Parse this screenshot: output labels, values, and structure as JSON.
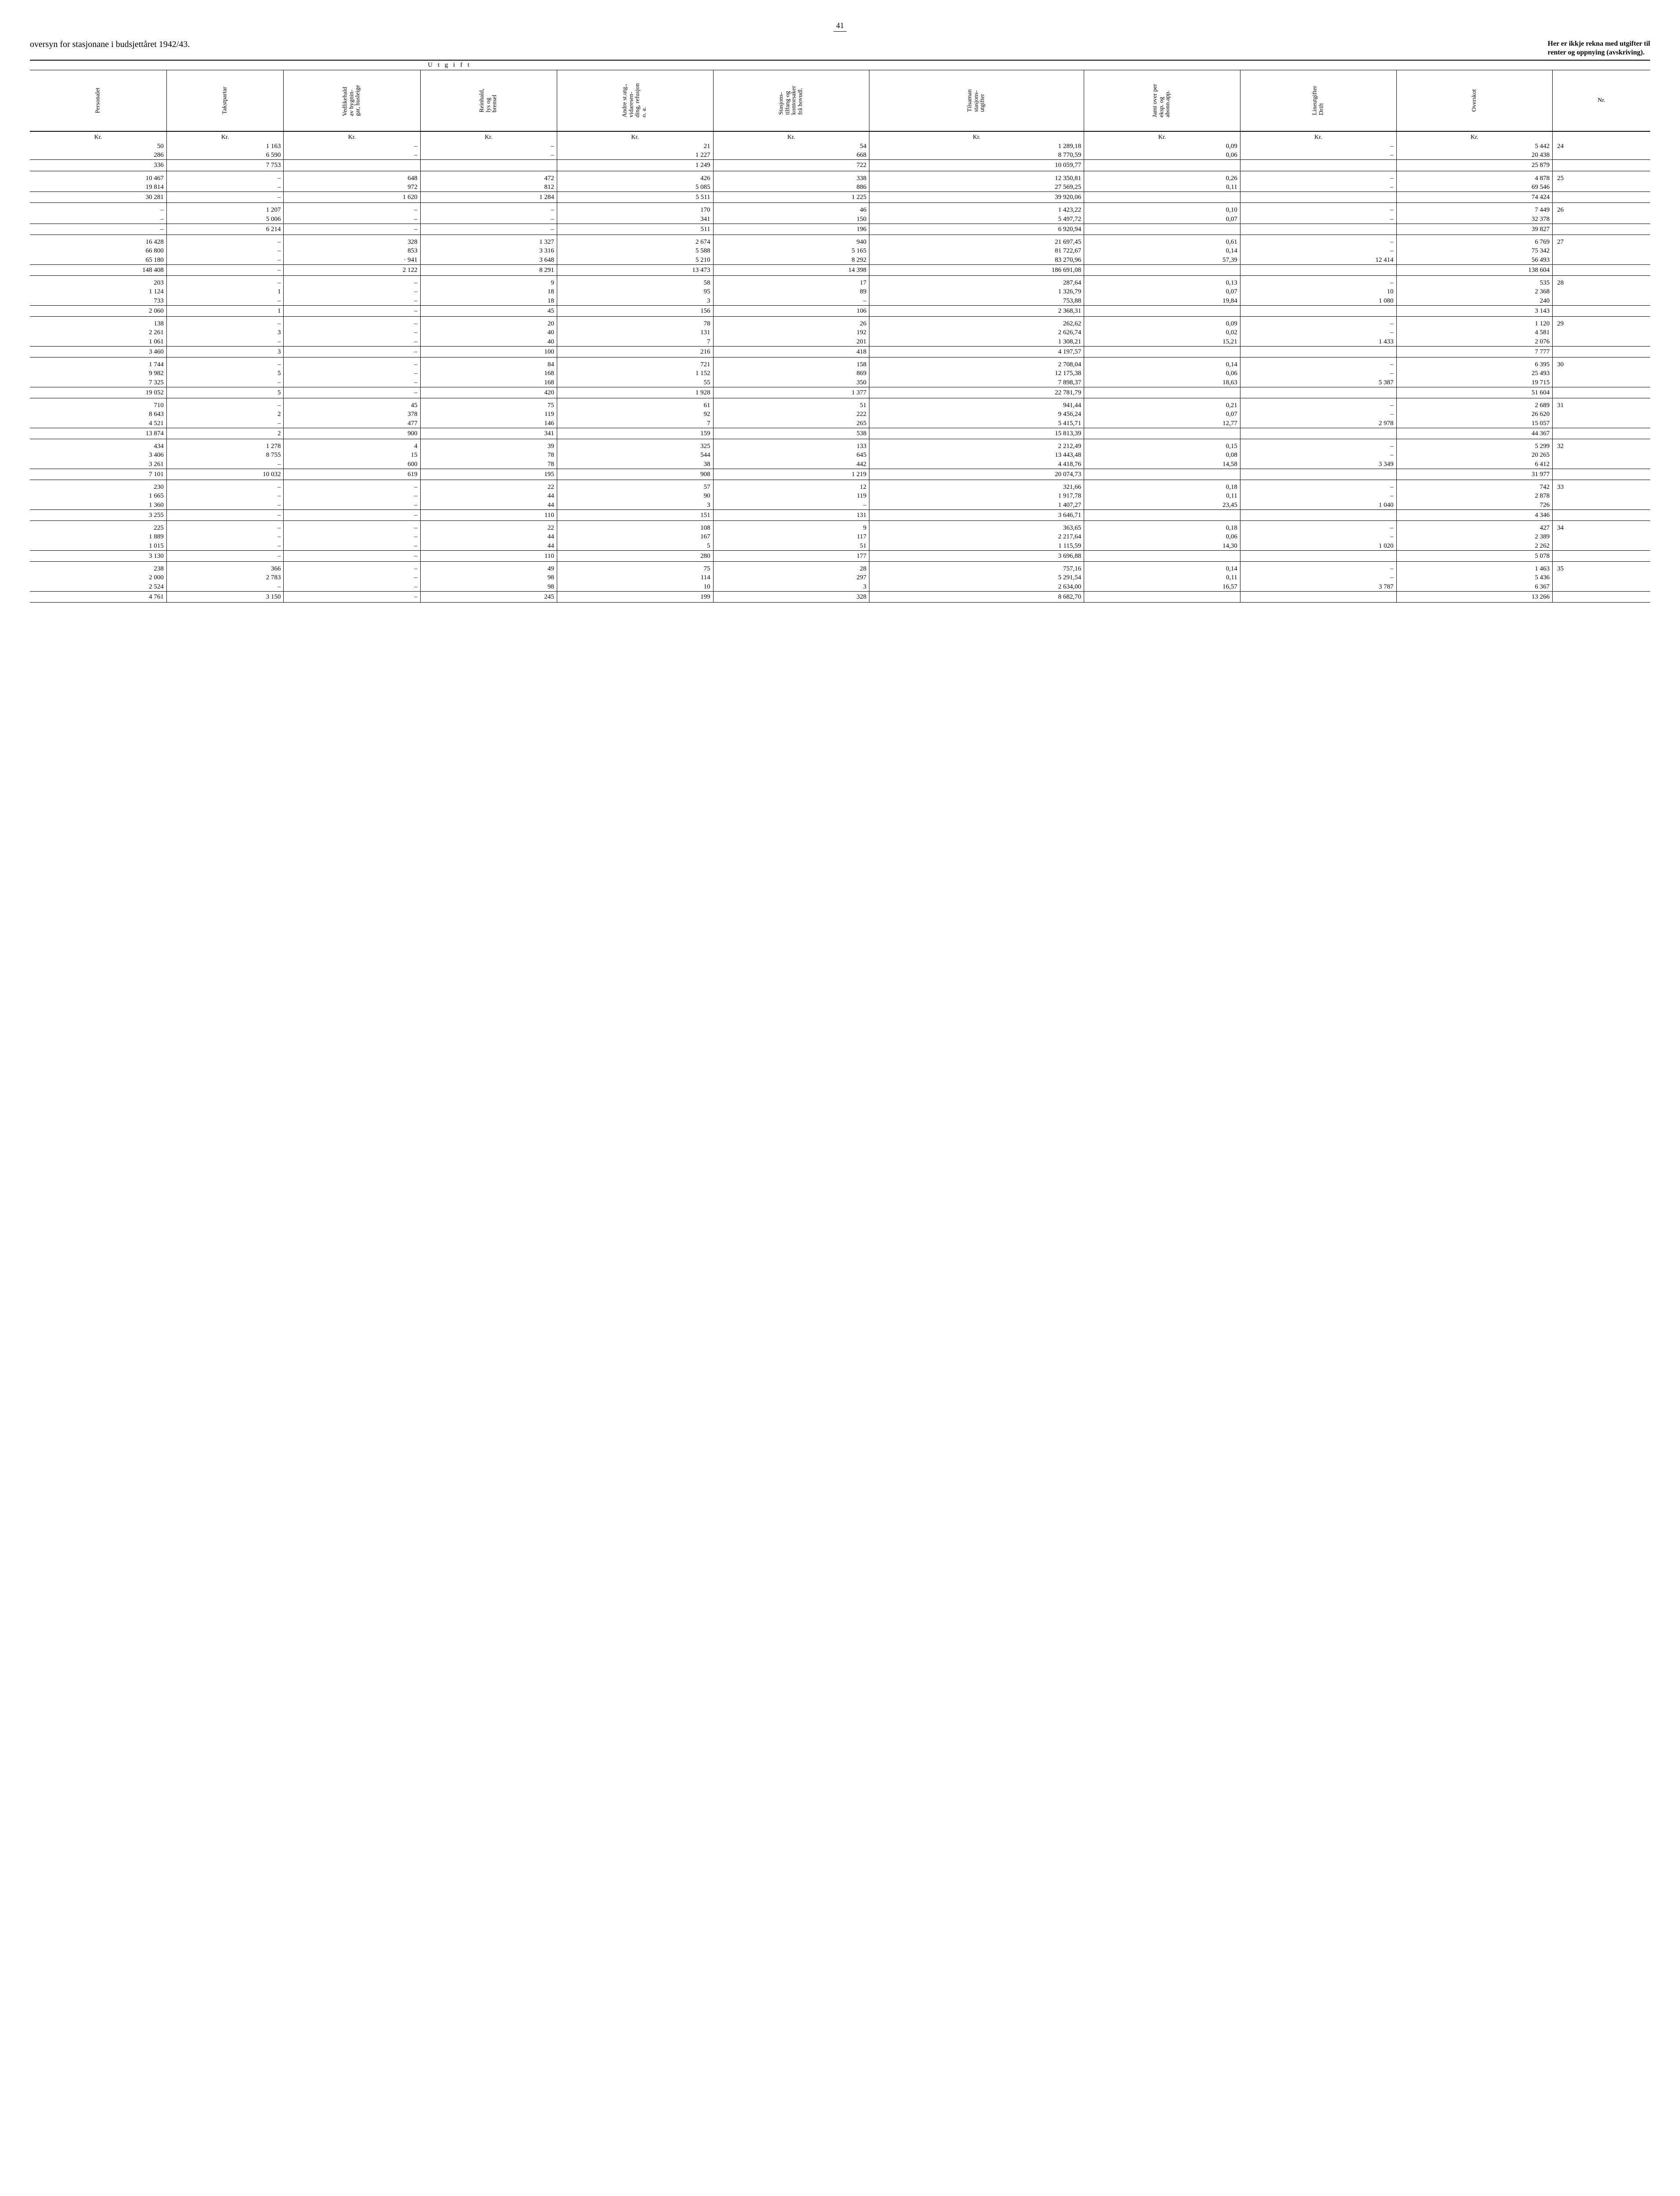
{
  "page_number": "41",
  "title_left": "oversyn for stasjonane i budsjettåret 1942/43.",
  "title_right_l1": "Her er ikkje rekna med utgifter til",
  "title_right_l2": "renter  og  oppnying  (avskriving).",
  "super_header": "U t g i f t",
  "columns": [
    "Personalet",
    "Takstpartar",
    "Vedlikehald\nav bygnin-\ngar, husleige",
    "Reinhald,\nlys og\nbrensel",
    "Andre st.utg.,\nvidaresen-\nding, refusjon\no. a.",
    "Stasjons-\ntilfang og\nkontorsaker\nfrå hovudl.",
    "Tilsaman\nstasjons-\nutgifter",
    "Jamt over per\neksp. og\nabonn.app.",
    "Lineutgifter\nDrift",
    "Overskot",
    "Nr."
  ],
  "unit_row": [
    "Kr.",
    "Kr.",
    "Kr.",
    "Kr.",
    "Kr.",
    "Kr.",
    "Kr.",
    "Kr.",
    "Kr.",
    "Kr.",
    ""
  ],
  "groups": [
    {
      "rows": [
        [
          "50",
          "1 163",
          "–",
          "–",
          "21",
          "54",
          "1 289,18",
          "0,09",
          "–",
          "5 442",
          "24"
        ],
        [
          "286",
          "6 590",
          "–",
          "–",
          "1 227",
          "668",
          "8 770,59",
          "0,06",
          "–",
          "20 438",
          ""
        ]
      ],
      "sum": [
        "336",
        "7 753",
        "",
        "",
        "1 249",
        "722",
        "10 059,77",
        "",
        "",
        "25 879",
        ""
      ]
    },
    {
      "rows": [
        [
          "10 467",
          "–",
          "648",
          "472",
          "426",
          "338",
          "12 350,81",
          "0,26",
          "–",
          "4 878",
          "25"
        ],
        [
          "19 814",
          "–",
          "972",
          "812",
          "5 085",
          "886",
          "27 569,25",
          "0,11",
          "–",
          "69 546",
          ""
        ]
      ],
      "sum": [
        "30 281",
        "–",
        "1 620",
        "1 284",
        "5 511",
        "1 225",
        "39 920,06",
        "",
        "",
        "74 424",
        ""
      ]
    },
    {
      "rows": [
        [
          "–",
          "1 207",
          "–",
          "–",
          "170",
          "46",
          "1 423,22",
          "0,10",
          "–",
          "7 449",
          "26"
        ],
        [
          "–",
          "5 006",
          "–",
          "–",
          "341",
          "150",
          "5 497,72",
          "0,07",
          "–",
          "32 378",
          ""
        ]
      ],
      "sum": [
        "–",
        "6 214",
        "–",
        "–",
        "511",
        "196",
        "6 920,94",
        "",
        "",
        "39 827",
        ""
      ]
    },
    {
      "rows": [
        [
          "16 428",
          "–",
          "328",
          "1 327",
          "2 674",
          "940",
          "21 697,45",
          "0,61",
          "–",
          "6 769",
          "27"
        ],
        [
          "66 800",
          "–",
          "853",
          "3 316",
          "5 588",
          "5 165",
          "81 722,67",
          "0,14",
          "–",
          "75 342",
          ""
        ],
        [
          "65 180",
          "–",
          "·  941",
          "3 648",
          "5 210",
          "8 292",
          "83 270,96",
          "57,39",
          "12 414",
          "56 493",
          ""
        ]
      ],
      "sum": [
        "148 408",
        "–",
        "2 122",
        "8 291",
        "13 473",
        "14 398",
        "186 691,08",
        "",
        "",
        "138 604",
        ""
      ]
    },
    {
      "rows": [
        [
          "203",
          "–",
          "–",
          "9",
          "58",
          "17",
          "287,64",
          "0,13",
          "–",
          "535",
          "28"
        ],
        [
          "1 124",
          "1",
          "–",
          "18",
          "95",
          "89",
          "1 326,79",
          "0,07",
          "10",
          "2 368",
          ""
        ],
        [
          "733",
          "–",
          "–",
          "18",
          "3",
          "–",
          "753,88",
          "19,84",
          "1 080",
          "240",
          ""
        ]
      ],
      "sum": [
        "2 060",
        "1",
        "–",
        "45",
        "156",
        "106",
        "2 368,31",
        "",
        "",
        "3 143",
        ""
      ]
    },
    {
      "rows": [
        [
          "138",
          "–",
          "–",
          "20",
          "78",
          "26",
          "262,62",
          "0,09",
          "–",
          "1 120",
          "29"
        ],
        [
          "2 261",
          "3",
          "–",
          "40",
          "131",
          "192",
          "2 626,74",
          "0,02",
          "–",
          "4 581",
          ""
        ],
        [
          "1 061",
          "–",
          "–",
          "40",
          "7",
          "201",
          "1 308,21",
          "15,21",
          "1 433",
          "2 076",
          ""
        ]
      ],
      "sum": [
        "3 460",
        "3",
        "–",
        "100",
        "216",
        "418",
        "4 197,57",
        "",
        "",
        "7 777",
        ""
      ]
    },
    {
      "rows": [
        [
          "1 744",
          "–",
          "–",
          "84",
          "721",
          "158",
          "2 708,04",
          "0,14",
          "–",
          "6 395",
          "30"
        ],
        [
          "9 982",
          "5",
          "–",
          "168",
          "1 152",
          "869",
          "12 175,38",
          "0,06",
          "–",
          "25 493",
          ""
        ],
        [
          "7 325",
          "–",
          "–",
          "168",
          "55",
          "350",
          "7 898,37",
          "18,63",
          "5 387",
          "19 715",
          ""
        ]
      ],
      "sum": [
        "19 052",
        "5",
        "–",
        "420",
        "1 928",
        "1 377",
        "22 781,79",
        "",
        "",
        "51 604",
        ""
      ]
    },
    {
      "rows": [
        [
          "710",
          "–",
          "45",
          "75",
          "61",
          "51",
          "941,44",
          "0,21",
          "–",
          "2 689",
          "31"
        ],
        [
          "8 643",
          "2",
          "378",
          "119",
          "92",
          "222",
          "9 456,24",
          "0,07",
          "–",
          "26 620",
          ""
        ],
        [
          "4 521",
          "–",
          "477",
          "146",
          "7",
          "265",
          "5 415,71",
          "12,77",
          "2 978",
          "15 057",
          ""
        ]
      ],
      "sum": [
        "13 874",
        "2",
        "900",
        "341",
        "159",
        "538",
        "15 813,39",
        "",
        "",
        "44 367",
        ""
      ]
    },
    {
      "rows": [
        [
          "434",
          "1 278",
          "4",
          "39",
          "325",
          "133",
          "2 212,49",
          "0,15",
          "–",
          "5 299",
          "32"
        ],
        [
          "3 406",
          "8 755",
          "15",
          "78",
          "544",
          "645",
          "13 443,48",
          "0,08",
          "–",
          "20 265",
          ""
        ],
        [
          "3 261",
          "–",
          "600",
          "78",
          "38",
          "442",
          "4 418,76",
          "14,58",
          "3 349",
          "6 412",
          ""
        ]
      ],
      "sum": [
        "7 101",
        "10 032",
        "619",
        "195",
        "908",
        "1 219",
        "20 074,73",
        "",
        "",
        "31 977",
        ""
      ]
    },
    {
      "rows": [
        [
          "230",
          "–",
          "–",
          "22",
          "57",
          "12",
          "321,66",
          "0,18",
          "–",
          "742",
          "33"
        ],
        [
          "1 665",
          "–",
          "–",
          "44",
          "90",
          "119",
          "1 917,78",
          "0,11",
          "–",
          "2 878",
          ""
        ],
        [
          "1 360",
          "–",
          "–",
          "44",
          "3",
          "–",
          "1 407,27",
          "23,45",
          "1 040",
          "726",
          ""
        ]
      ],
      "sum": [
        "3 255",
        "–",
        "–",
        "110",
        "151",
        "131",
        "3 646,71",
        "",
        "",
        "4 346",
        ""
      ]
    },
    {
      "rows": [
        [
          "225",
          "–",
          "–",
          "22",
          "108",
          "9",
          "363,65",
          "0,18",
          "–",
          "427",
          "34"
        ],
        [
          "1 889",
          "–",
          "–",
          "44",
          "167",
          "117",
          "2 217,64",
          "0,06",
          "–",
          "2 389",
          ""
        ],
        [
          "1 015",
          "–",
          "–",
          "44",
          "5",
          "51",
          "1 115,59",
          "14,30",
          "1 020",
          "2 262",
          ""
        ]
      ],
      "sum": [
        "3 130",
        "–",
        "–",
        "110",
        "280",
        "177",
        "3 696,88",
        "",
        "",
        "5 078",
        ""
      ]
    },
    {
      "rows": [
        [
          "238",
          "366",
          "–",
          "49",
          "75",
          "28",
          "757,16",
          "0,14",
          "–",
          "1 463",
          "35"
        ],
        [
          "2 000",
          "2 783",
          "–",
          "98",
          "114",
          "297",
          "5 291,54",
          "0,11",
          "–",
          "5 436",
          ""
        ],
        [
          "2 524",
          "–",
          "–",
          "98",
          "10",
          "3",
          "2 634,00",
          "16,57",
          "3 787",
          "6 367",
          ""
        ]
      ],
      "sum": [
        "4 761",
        "3 150",
        "–",
        "245",
        "199",
        "328",
        "8 682,70",
        "",
        "",
        "13 266",
        ""
      ]
    }
  ]
}
